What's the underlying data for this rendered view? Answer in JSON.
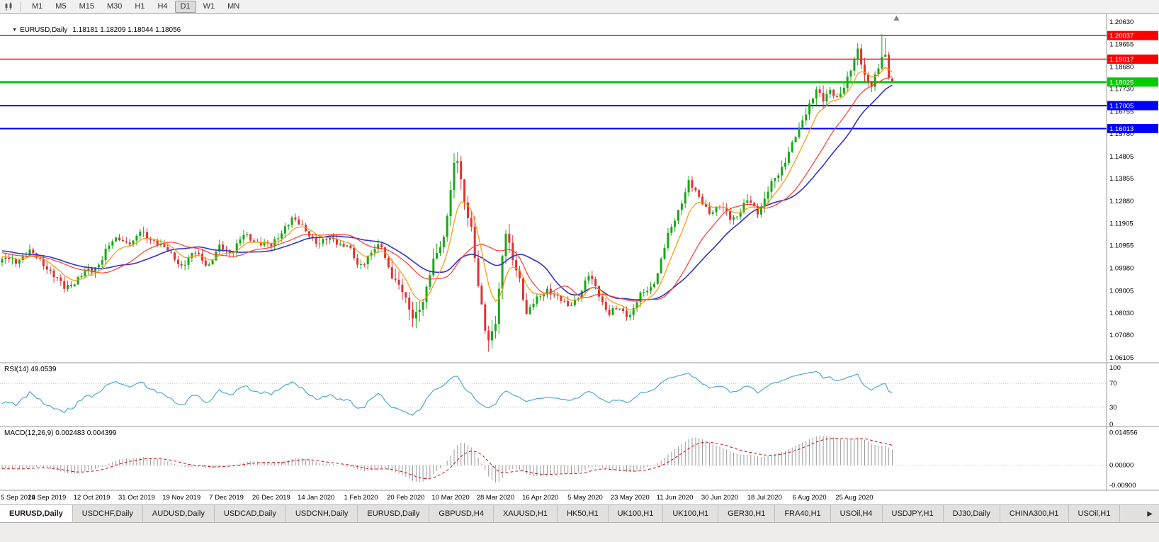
{
  "icons": {
    "dropdown": "▼",
    "more_tabs": "▶"
  },
  "toolbar": {
    "timeframes": [
      "M1",
      "M5",
      "M15",
      "M30",
      "H1",
      "H4",
      "D1",
      "W1",
      "MN"
    ],
    "active": "D1"
  },
  "tabs": {
    "items": [
      "EURUSD,Daily",
      "USDCHF,Daily",
      "AUDUSD,Daily",
      "USDCAD,Daily",
      "USDCNH,Daily",
      "EURUSD,Daily",
      "GBPUSD,H4",
      "XAUUSD,H1",
      "HK50,H1",
      "UK100,H1",
      "UK100,H1",
      "GER30,H1",
      "FRA40,H1",
      "USOil,H4",
      "USDJPY,H1",
      "DJ30,Daily",
      "CHINA300,H1",
      "USOil,H1"
    ],
    "active_index": 0,
    "more_icon": "▶"
  },
  "chart_data": {
    "type": "candlestick",
    "symbol": "EURUSD",
    "timeframe": "Daily",
    "title": "EURUSD,Daily",
    "ohlc_line": "1.18181 1.18209 1.18044 1.18056",
    "last": {
      "open": 1.18181,
      "high": 1.18209,
      "low": 1.18044,
      "close": 1.18056
    },
    "bars": 259,
    "price_range": {
      "top": 1.209,
      "bottom": 1.0595
    },
    "price_axis": [
      "1.20630",
      "1.19655",
      "1.18680",
      "1.17730",
      "1.16755",
      "1.15780",
      "1.14805",
      "1.13855",
      "1.12880",
      "1.11905",
      "1.10955",
      "1.09980",
      "1.09005",
      "1.08030",
      "1.07080",
      "1.06105"
    ],
    "date_labels": [
      "5 Sep 2019",
      "24 Sep 2019",
      "12 Oct 2019",
      "31 Oct 2019",
      "19 Nov 2019",
      "7 Dec 2019",
      "26 Dec 2019",
      "14 Jan 2020",
      "1 Feb 2020",
      "20 Feb 2020",
      "10 Mar 2020",
      "28 Mar 2020",
      "16 Apr 2020",
      "5 May 2020",
      "23 May 2020",
      "11 Jun 2020",
      "30 Jun 2020",
      "18 Jul 2020",
      "6 Aug 2020",
      "25 Aug 2020"
    ],
    "hlines": [
      {
        "label": "1.20037",
        "price": 1.20037,
        "color": "#ff0000",
        "width": 1.4
      },
      {
        "label": "1.19017",
        "price": 1.19017,
        "color": "#ff0000",
        "width": 1.4
      },
      {
        "label": "1.18025",
        "price": 1.18025,
        "color": "#00cc00",
        "width": 3
      },
      {
        "label": "1.17005",
        "price": 1.17005,
        "color": "#0000ff",
        "width": 2
      },
      {
        "label": "1.16013",
        "price": 1.16013,
        "color": "#0000ff",
        "width": 2
      }
    ],
    "anchors": [
      [
        0,
        1.1037
      ],
      [
        4,
        1.103
      ],
      [
        8,
        1.1068
      ],
      [
        12,
        1.1015
      ],
      [
        14,
        1.099
      ],
      [
        18,
        1.0905
      ],
      [
        22,
        1.096
      ],
      [
        26,
        1.0982
      ],
      [
        30,
        1.1074
      ],
      [
        34,
        1.113
      ],
      [
        38,
        1.1105
      ],
      [
        40,
        1.1152
      ],
      [
        44,
        1.112
      ],
      [
        48,
        1.1068
      ],
      [
        52,
        1.1012
      ],
      [
        56,
        1.106
      ],
      [
        60,
        1.1018
      ],
      [
        63,
        1.1078
      ],
      [
        66,
        1.1075
      ],
      [
        70,
        1.113
      ],
      [
        74,
        1.1118
      ],
      [
        78,
        1.1088
      ],
      [
        82,
        1.118
      ],
      [
        84,
        1.1212
      ],
      [
        88,
        1.116
      ],
      [
        92,
        1.1103
      ],
      [
        96,
        1.1128
      ],
      [
        100,
        1.109
      ],
      [
        103,
        1.101
      ],
      [
        106,
        1.1052
      ],
      [
        110,
        1.109
      ],
      [
        113,
        1.097
      ],
      [
        116,
        1.089
      ],
      [
        119,
        1.079
      ],
      [
        122,
        1.085
      ],
      [
        125,
        1.1026
      ],
      [
        128,
        1.1135
      ],
      [
        131,
        1.144
      ],
      [
        132,
        1.1456
      ],
      [
        134,
        1.128
      ],
      [
        136,
        1.1184
      ],
      [
        138,
        1.092
      ],
      [
        140,
        1.072
      ],
      [
        141,
        1.068
      ],
      [
        143,
        1.078
      ],
      [
        145,
        1.105
      ],
      [
        146,
        1.114
      ],
      [
        148,
        1.103
      ],
      [
        150,
        1.096
      ],
      [
        152,
        1.08
      ],
      [
        155,
        1.086
      ],
      [
        158,
        1.091
      ],
      [
        161,
        1.087
      ],
      [
        164,
        1.083
      ],
      [
        167,
        1.088
      ],
      [
        170,
        1.096
      ],
      [
        173,
        1.089
      ],
      [
        176,
        1.08
      ],
      [
        179,
        1.0815
      ],
      [
        182,
        1.0805
      ],
      [
        185,
        1.087
      ],
      [
        188,
        1.092
      ],
      [
        190,
        1.098
      ],
      [
        193,
        1.1134
      ],
      [
        196,
        1.125
      ],
      [
        199,
        1.137
      ],
      [
        202,
        1.13
      ],
      [
        205,
        1.1245
      ],
      [
        208,
        1.126
      ],
      [
        211,
        1.1219
      ],
      [
        213,
        1.1234
      ],
      [
        216,
        1.128
      ],
      [
        219,
        1.125
      ],
      [
        222,
        1.133
      ],
      [
        225,
        1.14
      ],
      [
        228,
        1.151
      ],
      [
        231,
        1.159
      ],
      [
        234,
        1.171
      ],
      [
        236,
        1.1778
      ],
      [
        238,
        1.172
      ],
      [
        240,
        1.176
      ],
      [
        242,
        1.1737
      ],
      [
        244,
        1.179
      ],
      [
        246,
        1.185
      ],
      [
        248,
        1.1933
      ],
      [
        250,
        1.184
      ],
      [
        252,
        1.1796
      ],
      [
        254,
        1.185
      ],
      [
        255,
        1.19
      ],
      [
        256,
        1.191
      ],
      [
        257,
        1.1838
      ],
      [
        258,
        1.18056
      ]
    ],
    "spikes": [
      {
        "i": 131,
        "high": 1.1495
      },
      {
        "i": 141,
        "low": 1.0636
      },
      {
        "i": 199,
        "high": 1.1383
      },
      {
        "i": 248,
        "high": 1.1966
      },
      {
        "i": 255,
        "high": 1.2009
      },
      {
        "i": 256,
        "high": 1.1992
      }
    ],
    "warmup": {
      "count": 55,
      "from": 1.117,
      "to": 1.1045
    },
    "ma": {
      "fast_period": 8,
      "mid_period": 20,
      "slow_period": 28
    },
    "rsi": {
      "label": "RSI(14) 49.0539",
      "period": 14,
      "value": 49.0539,
      "levels": [
        "100",
        "70",
        "30",
        "0"
      ],
      "level_values": [
        100,
        70,
        30,
        0
      ]
    },
    "macd": {
      "label": "MACD(12,26,9) 0.002483 0.004399",
      "fast": 12,
      "slow": 26,
      "signal_period": 9,
      "value": 0.002483,
      "signal": 0.004399,
      "axis_labels": [
        "0.014556",
        "0.00000",
        "-0.00900"
      ],
      "axis_values": [
        0.014556,
        0,
        -0.009
      ]
    },
    "macd_range": {
      "top": 0.016,
      "bottom": -0.0105
    },
    "colors": {
      "up": "#17a817",
      "down": "#e03232",
      "ma_fast": "#ff9500",
      "ma_mid": "#ff3b30",
      "ma_slow": "#3333cc",
      "rsi": "#4fa8da",
      "macd_hist": "#999999",
      "macd_signal": "#cc1111",
      "panel_border": "#9a9a9a"
    }
  }
}
